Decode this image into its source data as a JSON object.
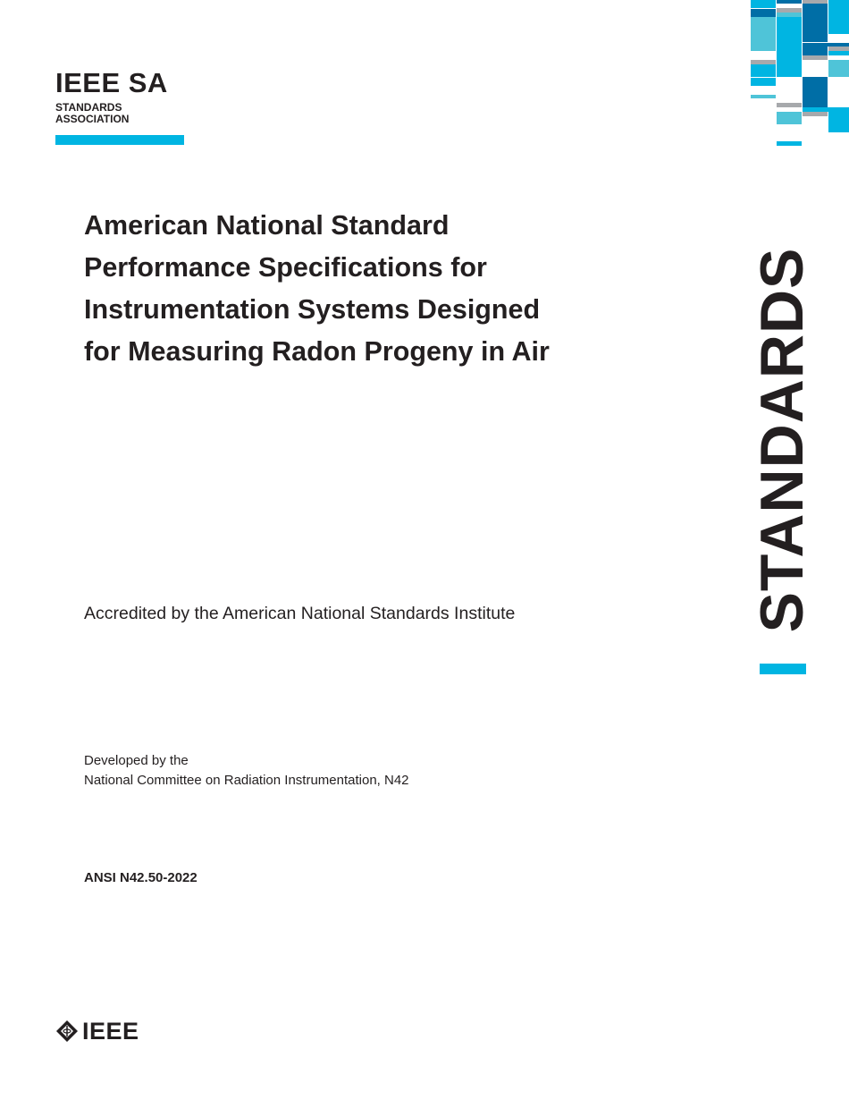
{
  "header": {
    "logo_text": "IEEE SA",
    "logo_subtitle_line1": "STANDARDS",
    "logo_subtitle_line2": "ASSOCIATION"
  },
  "title": {
    "lines": [
      "American National Standard",
      "Performance Specifications for",
      "Instrumentation Systems Designed",
      "for Measuring Radon Progeny in Air"
    ]
  },
  "accreditation": "Accredited by the American National Standards Institute",
  "developed_by": {
    "line1": "Developed by the",
    "line2": "National Committee on Radiation Instrumentation, N42"
  },
  "designation": "ANSI N42.50-2022",
  "side_label": "STANDARDS",
  "footer": {
    "logo_text": "IEEE",
    "logo_icon": "ieee-diamond-icon"
  },
  "colors": {
    "brand_blue": "#00b5e2",
    "dark_blue": "#006ea6",
    "teal": "#4fc4d8",
    "gray": "#a7a9ac",
    "text": "#231f20"
  }
}
